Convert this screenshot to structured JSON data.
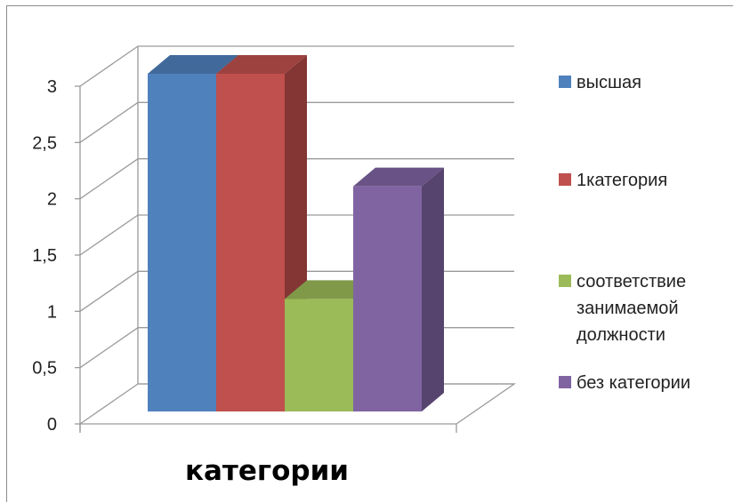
{
  "chart_data": {
    "type": "bar",
    "style": "3d-clustered-column",
    "categories": [
      ""
    ],
    "series": [
      {
        "name": "высшая",
        "values": [
          3
        ],
        "color": "#4F81BD"
      },
      {
        "name": "1категория",
        "values": [
          3
        ],
        "color": "#C0504D"
      },
      {
        "name": "соответствие занимаемой должности",
        "values": [
          1
        ],
        "color": "#9BBB59"
      },
      {
        "name": "без категории",
        "values": [
          2
        ],
        "color": "#8064A2"
      }
    ],
    "title": "",
    "xlabel": "категории",
    "ylabel": "",
    "ylim": [
      0,
      3
    ],
    "yticks": [
      "0",
      "0,5",
      "1",
      "1,5",
      "2",
      "2,5",
      "3"
    ],
    "grid": true,
    "legend": "right"
  }
}
